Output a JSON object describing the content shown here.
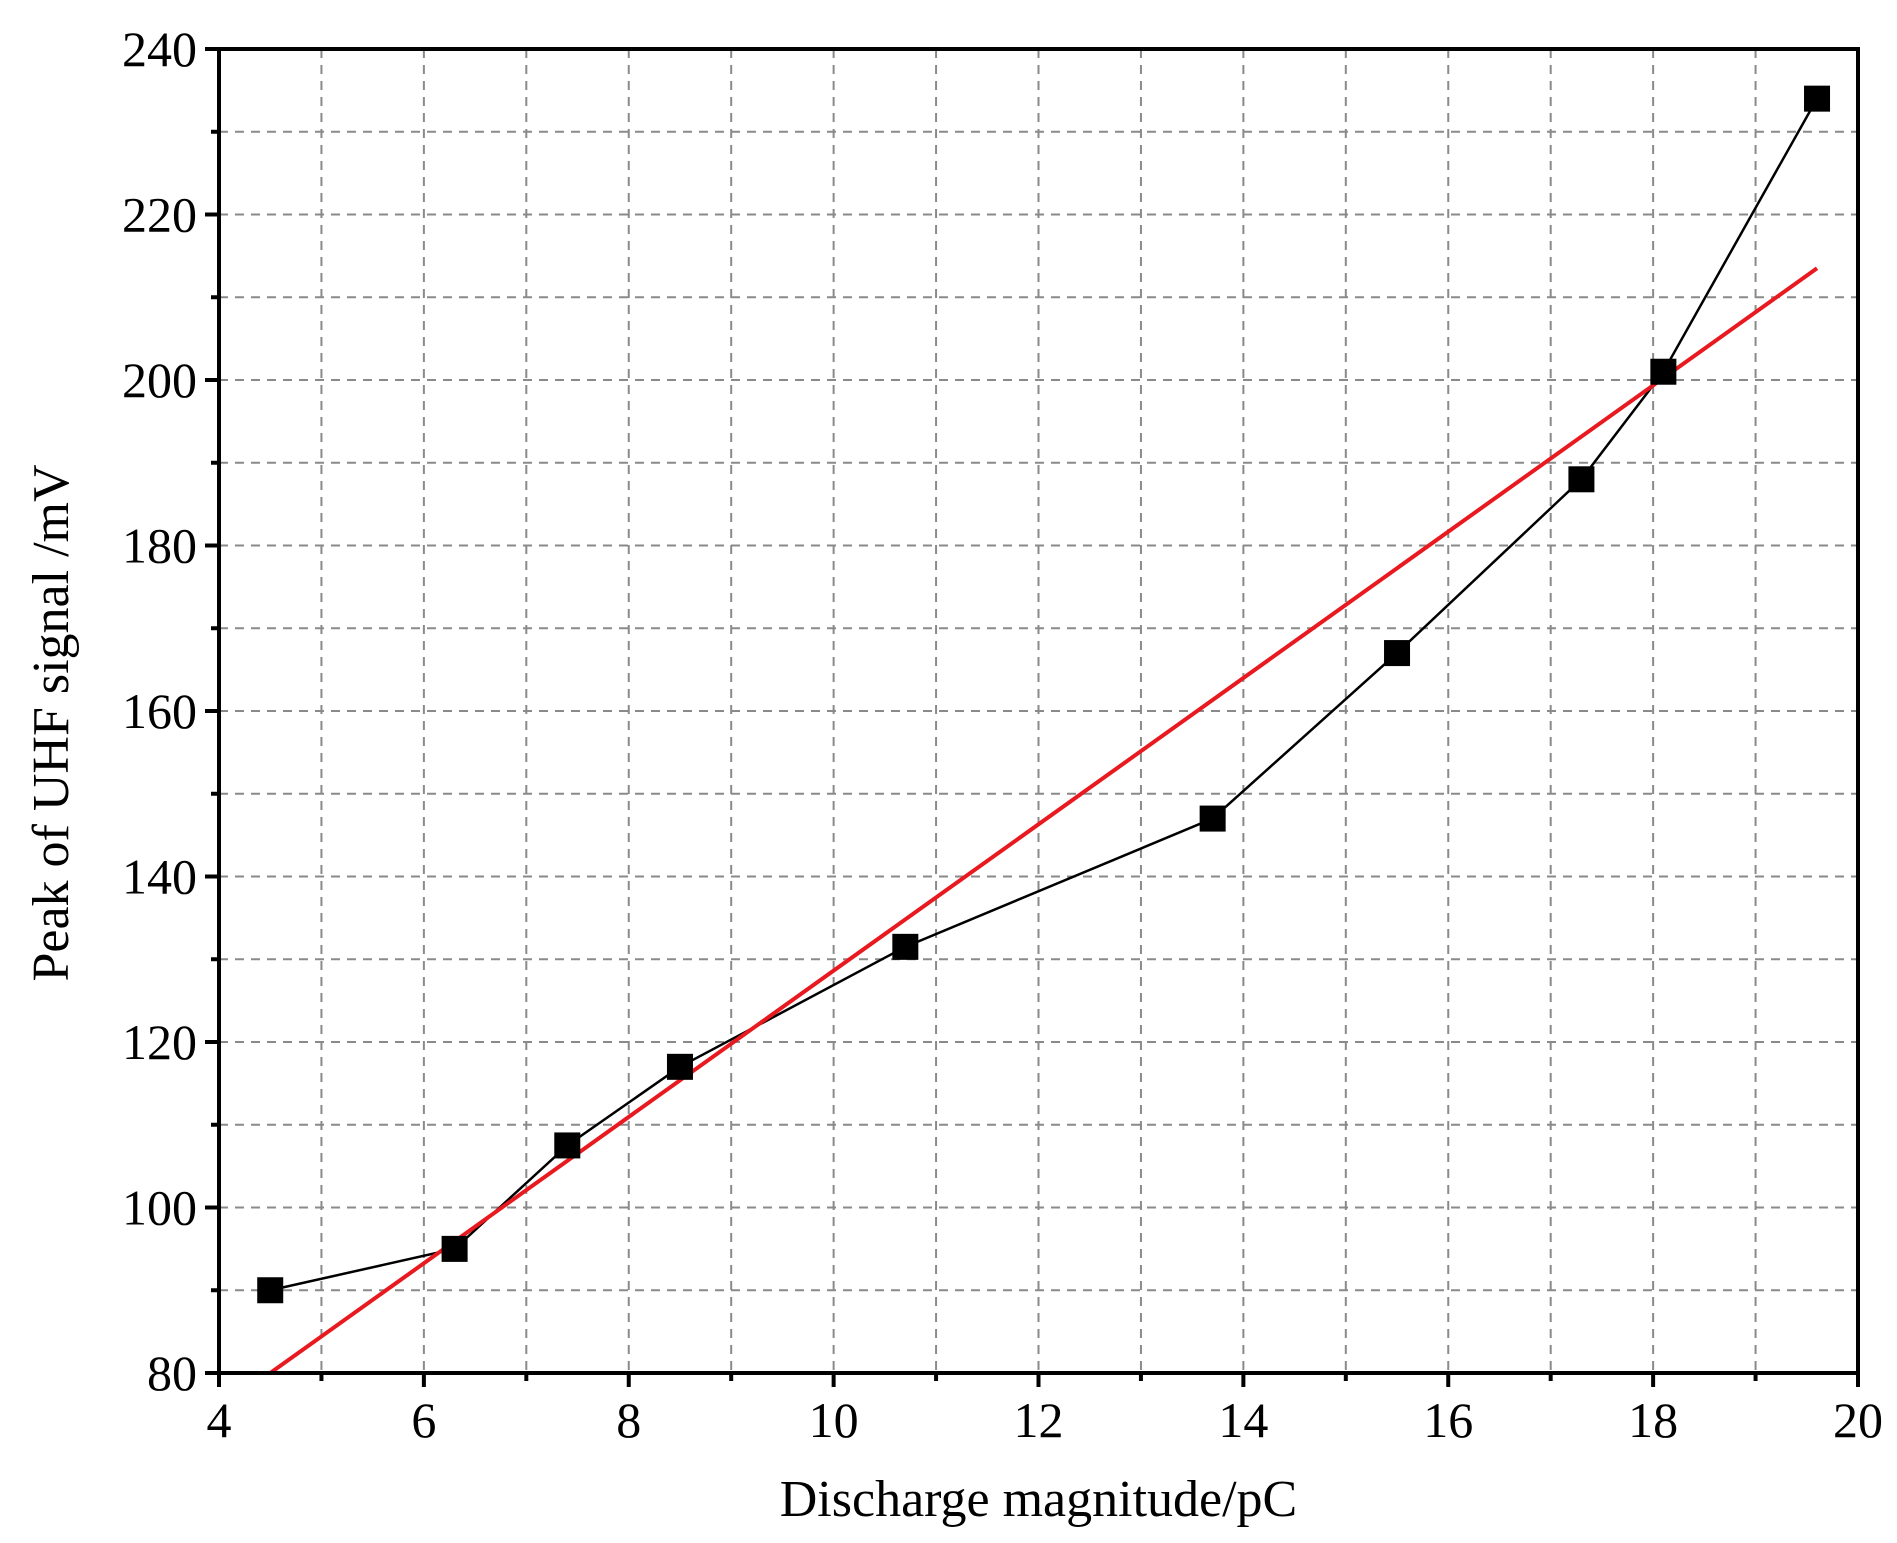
{
  "chart_data": {
    "type": "scatter",
    "title": "",
    "xlabel": "Discharge magnitude/pC",
    "ylabel": "Peak of UHF signal /mV",
    "xlim": [
      4,
      20
    ],
    "ylim": [
      80,
      240
    ],
    "x_major_ticks": [
      4,
      6,
      8,
      10,
      12,
      14,
      16,
      18,
      20
    ],
    "x_tick_labels": [
      "4",
      "6",
      "8",
      "10",
      "12",
      "14",
      "16",
      "18",
      "20"
    ],
    "y_major_ticks": [
      80,
      100,
      120,
      140,
      160,
      180,
      200,
      220,
      240
    ],
    "y_tick_labels": [
      "80",
      "100",
      "120",
      "140",
      "160",
      "180",
      "200",
      "220",
      "240"
    ],
    "x_minor_ticks": [
      5,
      7,
      9,
      11,
      13,
      15,
      17,
      19
    ],
    "y_minor_ticks": [
      90,
      110,
      130,
      150,
      170,
      190,
      210,
      230
    ],
    "grid": true,
    "legend": "none",
    "series": [
      {
        "type": "line",
        "marker": "square",
        "color": "#000000",
        "x": [
          4.5,
          6.3,
          7.4,
          8.5,
          10.7,
          13.7,
          15.5,
          17.3,
          18.1,
          19.6
        ],
        "y": [
          90,
          95,
          107.5,
          117,
          131.5,
          147,
          167,
          188,
          201,
          234
        ]
      },
      {
        "type": "line",
        "marker": "none",
        "color": "#e8191f",
        "x": [
          4.5,
          19.6
        ],
        "y": [
          80,
          213.5
        ]
      }
    ]
  }
}
